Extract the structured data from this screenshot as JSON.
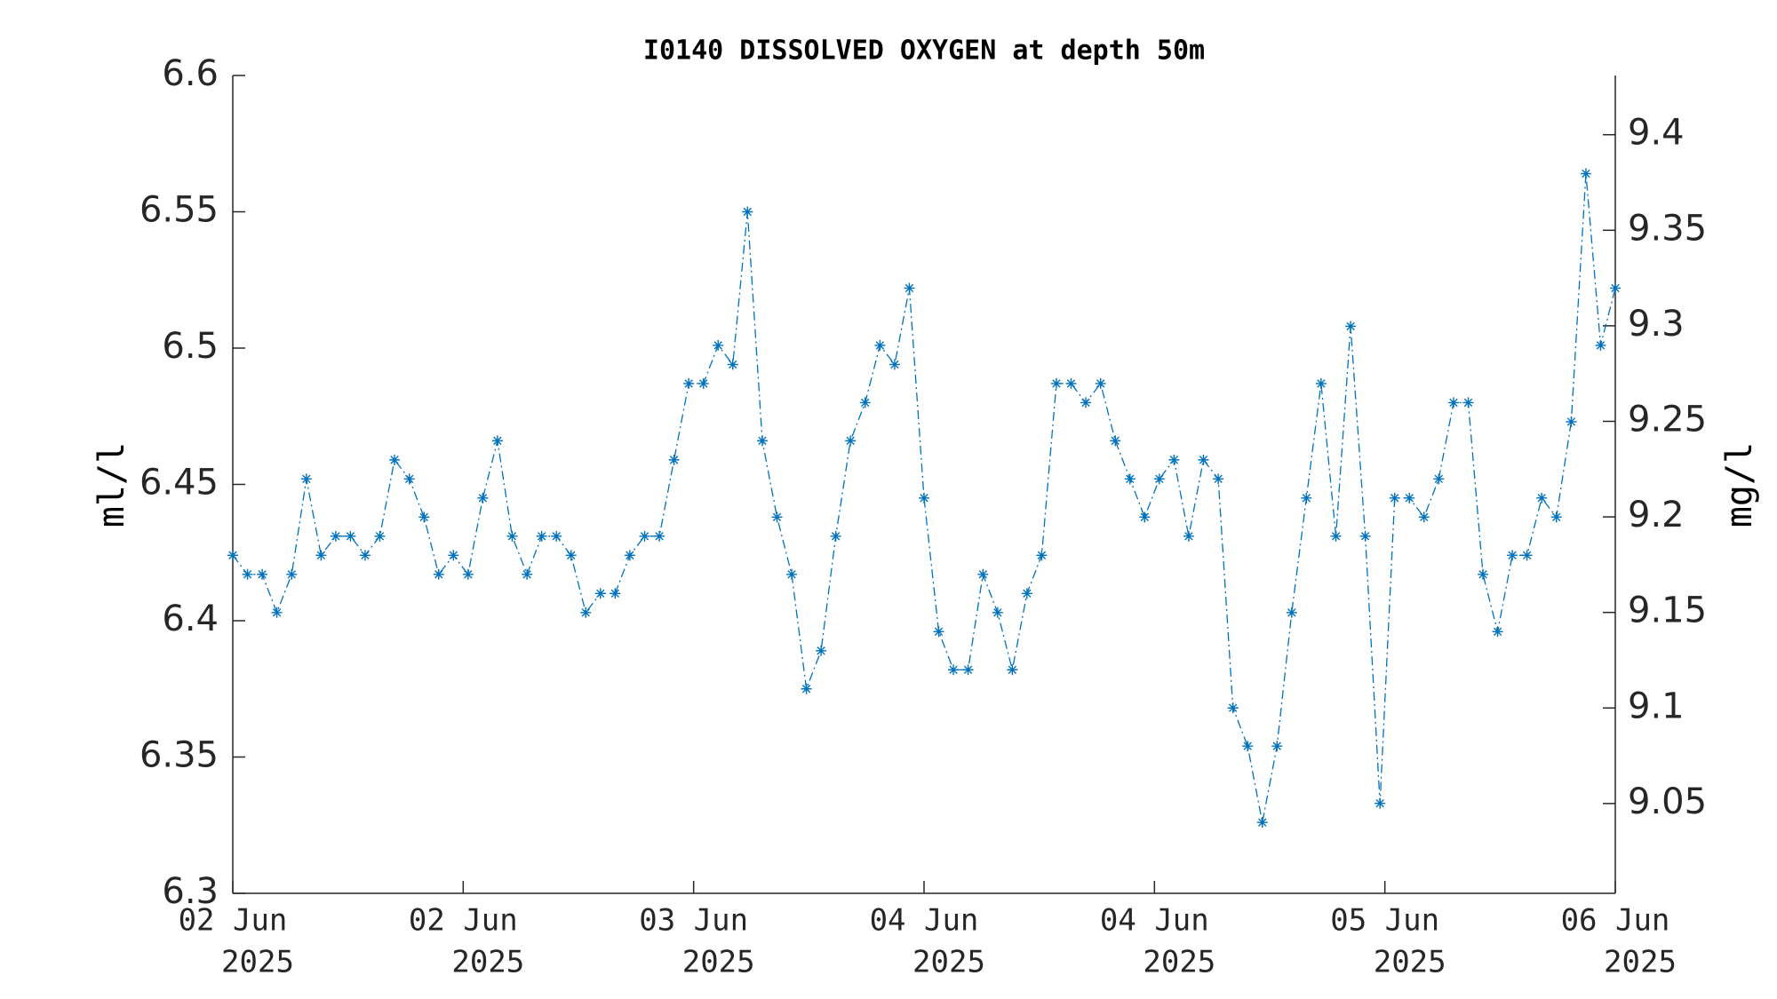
{
  "chart_data": {
    "type": "line",
    "title": "I0140 DISSOLVED OXYGEN at depth 50m",
    "ylabel": "ml/l",
    "y2label": "mg/l",
    "x": [
      0,
      1.02,
      2.04,
      3.06,
      4.09,
      5.11,
      6.13,
      7.15,
      8.17,
      9.19,
      10.21,
      11.23,
      12.26,
      13.28,
      14.3,
      15.32,
      16.34,
      17.36,
      18.38,
      19.4,
      20.43,
      21.45,
      22.47,
      23.49,
      24.51,
      25.53,
      26.55,
      27.57,
      28.6,
      29.62,
      30.64,
      31.66,
      32.68,
      33.7,
      34.72,
      35.74,
      36.77,
      37.79,
      38.81,
      39.83,
      40.85,
      41.87,
      42.89,
      43.91,
      44.94,
      45.96,
      46.98,
      48.0,
      49.02,
      50.04,
      51.06,
      52.09,
      53.11,
      54.13,
      55.15,
      56.17,
      57.19,
      58.21,
      59.23,
      60.26,
      61.28,
      62.3,
      63.32,
      64.34,
      65.36,
      66.38,
      67.4,
      68.43,
      69.45,
      70.47,
      71.49,
      72.51,
      73.53,
      74.55,
      75.57,
      76.6,
      77.62,
      78.64,
      79.66,
      80.68,
      81.7,
      82.72,
      83.74,
      84.77,
      85.79,
      86.81,
      87.83,
      88.85,
      89.87,
      90.89,
      91.91,
      92.94,
      93.96,
      94.98,
      96.0
    ],
    "series": [
      {
        "color": "#0072bd",
        "values": [
          6.424,
          6.417,
          6.417,
          6.403,
          6.417,
          6.452,
          6.424,
          6.431,
          6.431,
          6.424,
          6.431,
          6.459,
          6.452,
          6.438,
          6.417,
          6.424,
          6.417,
          6.445,
          6.466,
          6.431,
          6.417,
          6.431,
          6.431,
          6.424,
          6.403,
          6.41,
          6.41,
          6.424,
          6.431,
          6.431,
          6.459,
          6.487,
          6.487,
          6.501,
          6.494,
          6.55,
          6.466,
          6.438,
          6.417,
          6.375,
          6.389,
          6.431,
          6.466,
          6.48,
          6.501,
          6.494,
          6.522,
          6.445,
          6.396,
          6.382,
          6.382,
          6.417,
          6.403,
          6.382,
          6.41,
          6.424,
          6.487,
          6.487,
          6.48,
          6.487,
          6.466,
          6.452,
          6.438,
          6.452,
          6.459,
          6.431,
          6.459,
          6.452,
          6.368,
          6.354,
          6.326,
          6.354,
          6.403,
          6.445,
          6.487,
          6.431,
          6.508,
          6.431,
          6.333,
          6.445,
          6.445,
          6.438,
          6.452,
          6.48,
          6.48,
          6.417,
          6.396,
          6.424,
          6.424,
          6.445,
          6.438,
          6.473,
          6.564,
          6.501,
          6.522
        ]
      }
    ],
    "xlim": [
      0,
      96
    ],
    "xticks": [
      {
        "value": 0,
        "label": [
          "02 Jun",
          "2025"
        ]
      },
      {
        "value": 16,
        "label": [
          "02 Jun",
          "2025"
        ]
      },
      {
        "value": 32,
        "label": [
          "03 Jun",
          "2025"
        ]
      },
      {
        "value": 48,
        "label": [
          "04 Jun",
          "2025"
        ]
      },
      {
        "value": 64,
        "label": [
          "04 Jun",
          "2025"
        ]
      },
      {
        "value": 80,
        "label": [
          "05 Jun",
          "2025"
        ]
      },
      {
        "value": 96,
        "label": [
          "06 Jun",
          "2025"
        ]
      }
    ],
    "ylim": [
      6.3,
      6.6
    ],
    "yticks": [
      6.3,
      6.35,
      6.4,
      6.45,
      6.5,
      6.55,
      6.6
    ],
    "y2lim": [
      9.003,
      9.431
    ],
    "y2ticks": [
      9.05,
      9.1,
      9.15,
      9.2,
      9.25,
      9.3,
      9.35,
      9.4
    ],
    "grid": false
  }
}
